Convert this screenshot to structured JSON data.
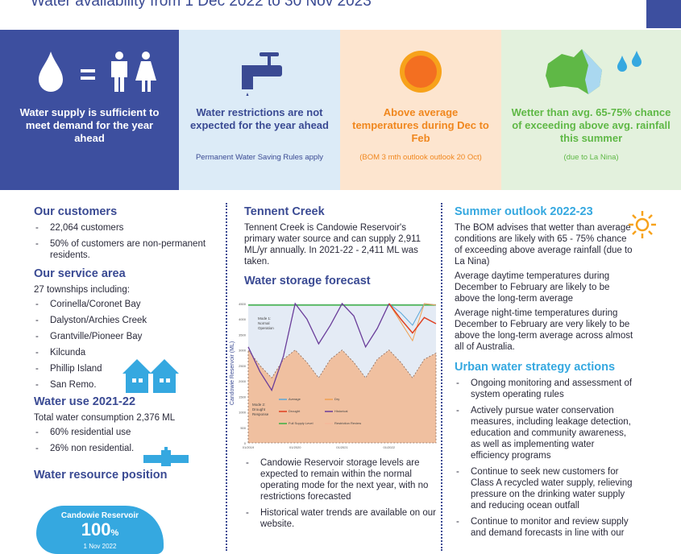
{
  "header": {
    "title": "Water availability from 1 Dec 2022 to 30 Nov 2023"
  },
  "banner": [
    {
      "text": "Water supply is sufficient to meet demand for the year ahead",
      "icon": "water-drop-equals-people-icon"
    },
    {
      "text": "Water restrictions are not expected for the year ahead",
      "sub": "Permanent Water Saving Rules apply",
      "icon": "tap-icon"
    },
    {
      "text": "Above average temperatures during Dec to Feb",
      "sub": "(BOM 3 mth outlook outlook 20 Oct)",
      "icon": "sun-icon"
    },
    {
      "text": "Wetter than avg. 65-75% chance of exceeding above avg. rainfall this summer",
      "sub": "(due to La Nina)",
      "icon": "australia-rain-icon"
    }
  ],
  "customers": {
    "heading": "Our customers",
    "items": [
      "22,064 customers",
      "50% of customers are non-permanent residents."
    ]
  },
  "service": {
    "heading": "Our service area",
    "intro": "27 townships including:",
    "items": [
      "Corinella/Coronet Bay",
      "Dalyston/Archies Creek",
      "Grantville/Pioneer Bay",
      "Kilcunda",
      "Phillip Island",
      "San Remo."
    ]
  },
  "use": {
    "heading": "Water use 2021-22",
    "intro": "Total water consumption 2,376 ML",
    "items": [
      "60% residential use",
      "26% non residential."
    ]
  },
  "resource": {
    "heading": "Water resource position",
    "name": "Candowie Reservoir",
    "value": "100",
    "unit": "%",
    "date": "1 Nov 2022"
  },
  "tennent": {
    "heading": "Tennent Creek",
    "text": "Tennent Creek is Candowie Reservoir's primary water source and can supply 2,911 ML/yr annually.  In 2021-22 - 2,411 ML was taken."
  },
  "forecast": {
    "heading": "Water storage forecast",
    "items": [
      "Candowie Reservoir storage levels are expected to remain within the normal operating mode for the next year, with no restrictions forecasted",
      "Historical water trends are available on our website."
    ]
  },
  "chart_data": {
    "type": "line",
    "ylabel": "Candowie Reservoir (ML)",
    "ylim": [
      0,
      4500
    ],
    "yticks": [
      0,
      500,
      1000,
      1500,
      2000,
      2500,
      3000,
      3500,
      4000,
      4500
    ],
    "xticks": [
      "01/2019",
      "01/2020",
      "01/2021",
      "01/2022"
    ],
    "mode1": "Mode 1: Normal Operation",
    "mode2": "Mode 2: Drought Response",
    "legend": [
      "Average",
      "Dry",
      "Drought",
      "Historical",
      "Full Supply Level",
      "Restriction Review"
    ],
    "colors": {
      "Average": "#5aa7d8",
      "Dry": "#f0a050",
      "Drought": "#e04020",
      "Historical": "#6a3d9a",
      "Full Supply Level": "#3cb043",
      "Restriction Review": "#f4b89a",
      "zone1": "#e4ebf5",
      "zone2": "#f0c0a0"
    },
    "x": [
      0,
      0.25,
      0.5,
      0.75,
      1,
      1.25,
      1.5,
      1.75,
      2,
      2.25,
      2.5,
      2.75,
      3,
      3.25,
      3.5,
      3.75,
      4
    ],
    "historical": [
      3100,
      2300,
      1700,
      2800,
      4500,
      4000,
      3200,
      3800,
      4500,
      4100,
      3100,
      3700,
      4500,
      null,
      null,
      null,
      null
    ],
    "drought_response": [
      3000,
      2500,
      2100,
      2700,
      3000,
      2600,
      2100,
      2700,
      3000,
      2600,
      2100,
      2700,
      3000,
      2600,
      2100,
      2700,
      2900
    ],
    "average": [
      null,
      null,
      null,
      null,
      null,
      null,
      null,
      null,
      null,
      null,
      null,
      null,
      4500,
      4200,
      3800,
      4500,
      4450
    ],
    "dry": [
      null,
      null,
      null,
      null,
      null,
      null,
      null,
      null,
      null,
      null,
      null,
      null,
      4500,
      3900,
      3300,
      4500,
      4450
    ],
    "drought": [
      null,
      null,
      null,
      null,
      null,
      null,
      null,
      null,
      null,
      null,
      null,
      null,
      4500,
      4000,
      3550,
      4050,
      3850
    ],
    "full_supply": 4450
  },
  "summer": {
    "heading": "Summer outlook 2022-23",
    "paras": [
      "The BOM advises that wetter than average conditions are likely with 65 - 75% chance of exceeding above average rainfall (due to La Nina)",
      "Average daytime temperatures during December to February are likely to be above the long-term average",
      "Average night-time temperatures during December to February are very likely to be above the long-term average across almost all of Australia."
    ]
  },
  "strategy": {
    "heading": "Urban water strategy actions",
    "items": [
      "Ongoing monitoring and assessment of system operating rules",
      "Actively pursue water conservation measures, including leakage detection, education and community awareness, as well as implementing water efficiency programs",
      "Continue to seek new customers for Class A recycled water supply, relieving pressure on the drinking water supply and reducing ocean outfall",
      "Continue to monitor and review supply and demand forecasts in line with our"
    ]
  }
}
